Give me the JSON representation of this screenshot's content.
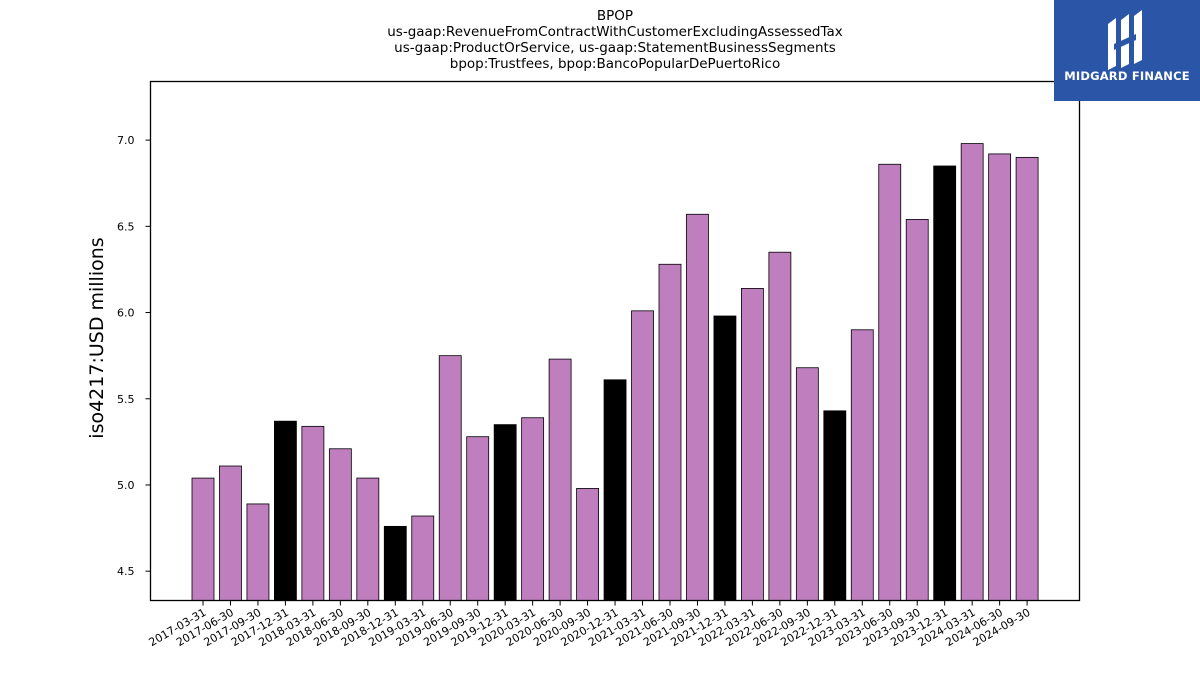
{
  "logo": {
    "text": "MIDGARD FINANCE",
    "background": "#2b56a7",
    "icon": "midgard-logo-icon"
  },
  "chart_data": {
    "type": "bar",
    "title_lines": [
      "BPOP",
      "us-gaap:RevenueFromContractWithCustomerExcludingAssessedTax",
      "us-gaap:ProductOrService, us-gaap:StatementBusinessSegments",
      "bpop:Trustfees, bpop:BancoPopularDePuertoRico"
    ],
    "ylabel": "iso4217:USD  millions",
    "xlabel": "",
    "ylim": [
      4.33,
      7.34
    ],
    "yticks": [
      4.5,
      5.0,
      5.5,
      6.0,
      6.5,
      7.0
    ],
    "grid": false,
    "colors": {
      "regular": "#bf7fbf",
      "year_end": "#000000",
      "edge": "#000000"
    },
    "categories": [
      "2017-03-31",
      "2017-06-30",
      "2017-09-30",
      "2017-12-31",
      "2018-03-31",
      "2018-06-30",
      "2018-09-30",
      "2018-12-31",
      "2019-03-31",
      "2019-06-30",
      "2019-09-30",
      "2019-12-31",
      "2020-03-31",
      "2020-06-30",
      "2020-09-30",
      "2020-12-31",
      "2021-03-31",
      "2021-06-30",
      "2021-09-30",
      "2021-12-31",
      "2022-03-31",
      "2022-06-30",
      "2022-09-30",
      "2022-12-31",
      "2023-03-31",
      "2023-06-30",
      "2023-09-30",
      "2023-12-31",
      "2024-03-31",
      "2024-06-30",
      "2024-09-30"
    ],
    "values": [
      5.04,
      5.11,
      4.89,
      5.37,
      5.34,
      5.21,
      5.04,
      4.76,
      4.82,
      5.75,
      5.28,
      5.35,
      5.39,
      5.73,
      4.98,
      5.61,
      6.01,
      6.28,
      6.57,
      5.98,
      6.14,
      6.35,
      5.68,
      5.43,
      5.9,
      6.86,
      6.54,
      6.85,
      6.98,
      6.92,
      6.9
    ],
    "highlight": [
      false,
      false,
      false,
      true,
      false,
      false,
      false,
      true,
      false,
      false,
      false,
      true,
      false,
      false,
      false,
      true,
      false,
      false,
      false,
      true,
      false,
      false,
      false,
      true,
      false,
      false,
      false,
      true,
      false,
      false,
      false
    ]
  }
}
